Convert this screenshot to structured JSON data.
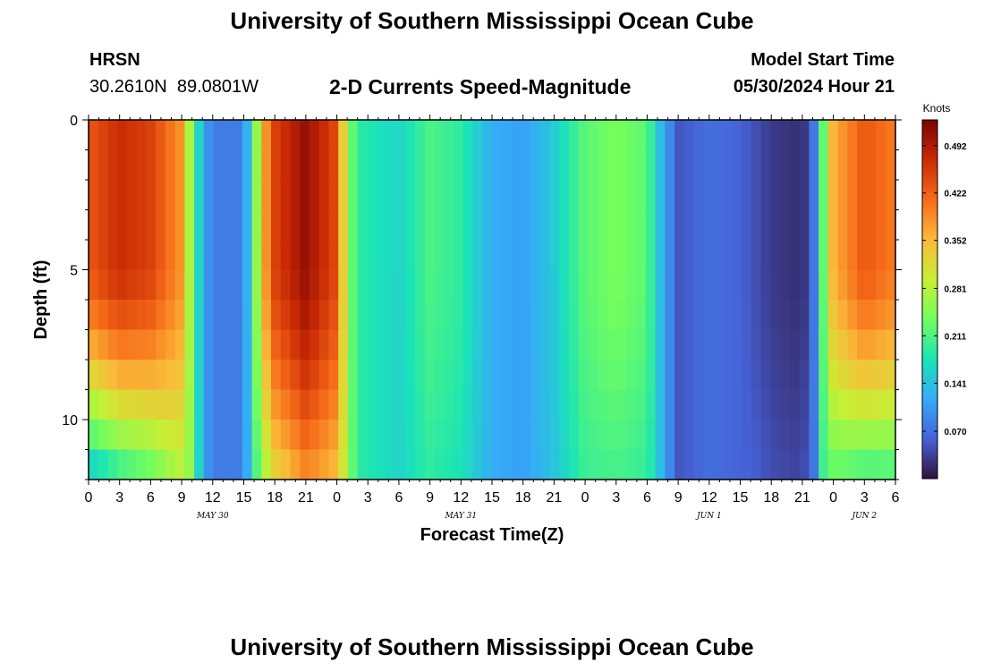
{
  "header": {
    "title": "University of Southern Mississippi Ocean Cube",
    "station_name": "HRSN",
    "station_coords": "30.2610N  89.0801W",
    "chart_title": "2-D Currents Speed-Magnitude",
    "model_start_label": "Model Start Time",
    "model_start_value": "05/30/2024 Hour 21"
  },
  "footer": {
    "title": "University of Southern Mississippi Ocean Cube"
  },
  "colors": {
    "colormap": [
      "#30123b",
      "#4662d7",
      "#36aaf9",
      "#1ae4b6",
      "#72fe5e",
      "#c8ef34",
      "#faba39",
      "#f66b19",
      "#ca2a04",
      "#7a0403"
    ]
  },
  "chart_data": {
    "type": "heatmap",
    "xlabel": "Forecast Time(Z)",
    "ylabel": "Depth (ft)",
    "ylim": [
      0,
      12
    ],
    "y_ticks": [
      0,
      5,
      10
    ],
    "x_tick_labels": [
      "0",
      "3",
      "6",
      "9",
      "12",
      "15",
      "18",
      "21",
      "0",
      "3",
      "6",
      "9",
      "12",
      "15",
      "18",
      "21",
      "0",
      "3",
      "6",
      "9",
      "12",
      "15",
      "18",
      "21",
      "0",
      "3",
      "6"
    ],
    "date_labels": [
      {
        "text": "MAY 30",
        "at_tick": 4
      },
      {
        "text": "MAY 31",
        "at_tick": 12
      },
      {
        "text": "JUN 1",
        "at_tick": 20
      },
      {
        "text": "JUN 2",
        "at_tick": 25
      }
    ],
    "colorbar": {
      "label": "Knots",
      "min": 0.0,
      "max": 0.53,
      "ticks": [
        0.07,
        0.141,
        0.211,
        0.281,
        0.352,
        0.422,
        0.492
      ],
      "tick_labels": [
        "0.070",
        "0.141",
        "0.211",
        "0.281",
        "0.352",
        "0.422",
        "0.492"
      ]
    },
    "speed_profile": {
      "hours": [
        0,
        3,
        6,
        9,
        10,
        11,
        12,
        15,
        16,
        17,
        18,
        21,
        24,
        25,
        26,
        30,
        33,
        36,
        39,
        42,
        45,
        48,
        51,
        54,
        55,
        57,
        60,
        63,
        66,
        69,
        70,
        71,
        72,
        75,
        78
      ],
      "surface_knots": [
        0.43,
        0.47,
        0.45,
        0.38,
        0.24,
        0.12,
        0.08,
        0.08,
        0.22,
        0.37,
        0.45,
        0.51,
        0.44,
        0.26,
        0.19,
        0.16,
        0.21,
        0.19,
        0.12,
        0.11,
        0.15,
        0.22,
        0.24,
        0.22,
        0.15,
        0.05,
        0.07,
        0.06,
        0.03,
        0.02,
        0.06,
        0.22,
        0.36,
        0.43,
        0.4
      ],
      "surface_to_bottom_factor": [
        0.3,
        0.38,
        0.47,
        0.72,
        1.0,
        1.0,
        1.0,
        1.0,
        0.85,
        0.72,
        0.7,
        0.75,
        0.78,
        1.0,
        1.0,
        1.0,
        0.9,
        0.92,
        1.0,
        1.0,
        0.95,
        0.9,
        0.85,
        0.88,
        1.0,
        1.0,
        1.0,
        1.0,
        1.5,
        1.8,
        1.0,
        0.9,
        0.6,
        0.45,
        0.5
      ]
    }
  }
}
